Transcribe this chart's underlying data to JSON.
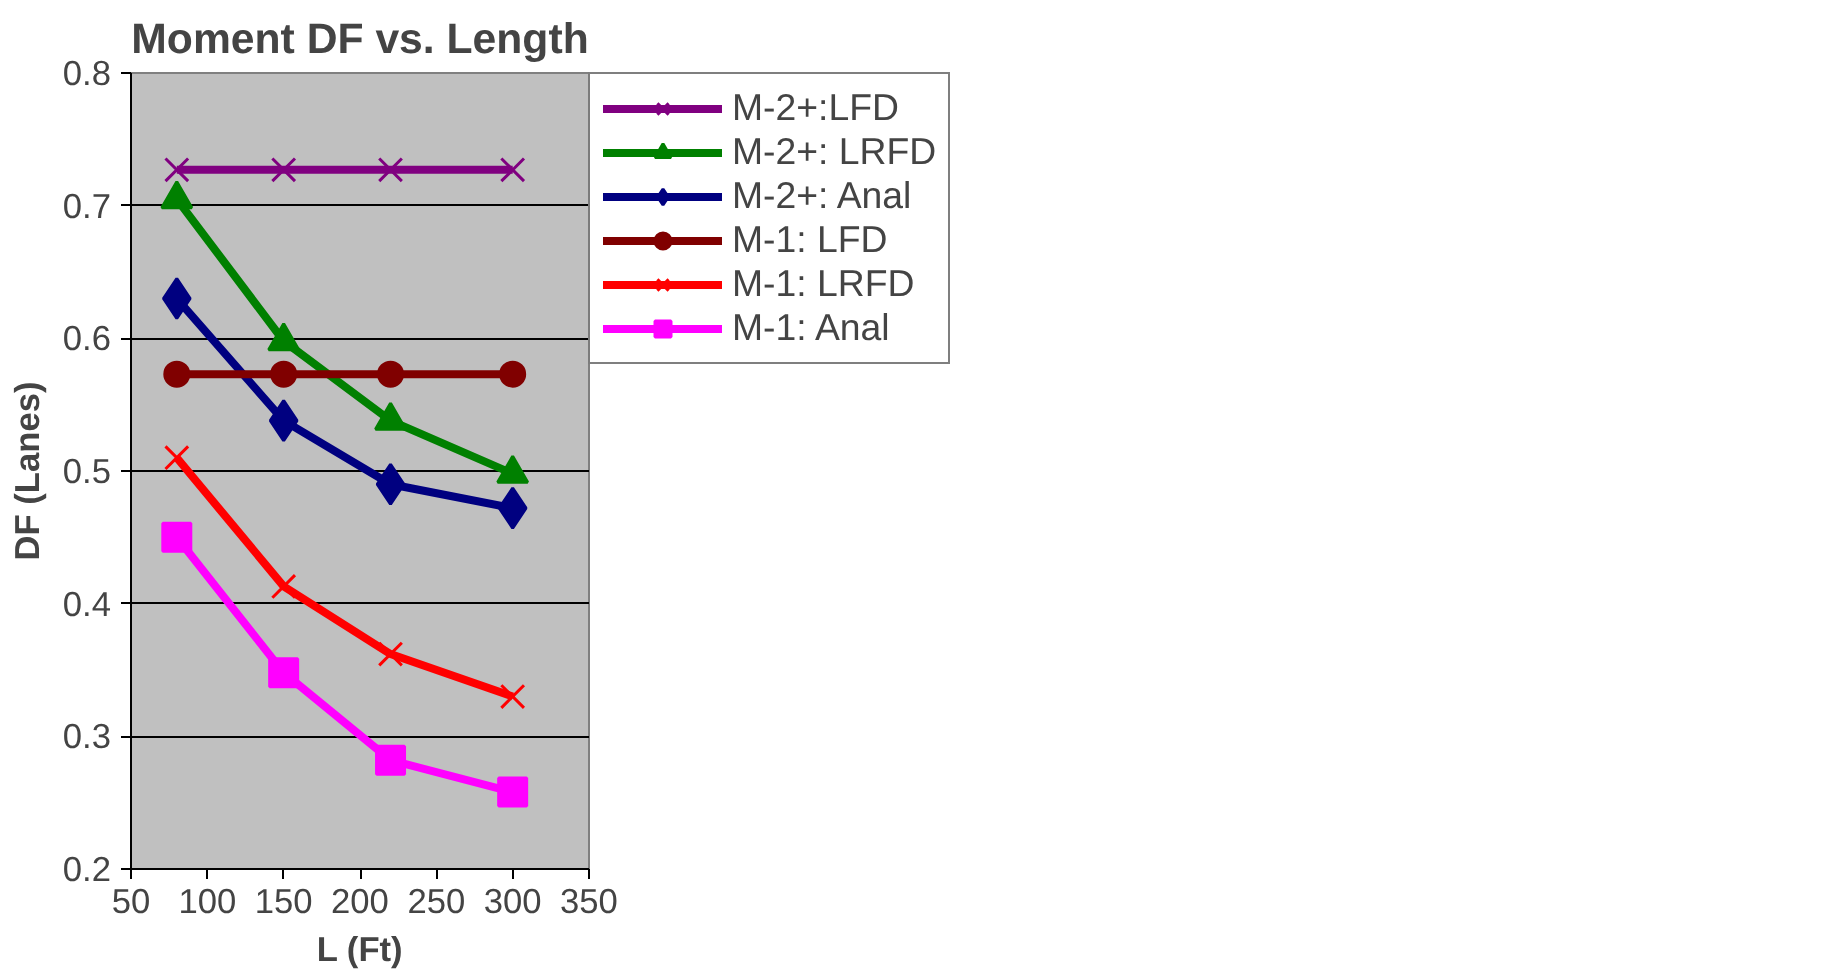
{
  "chart_data": {
    "type": "line",
    "title": "Moment DF vs. Length",
    "xlabel": "L (Ft)",
    "ylabel": "DF (Lanes)",
    "x": [
      80,
      150,
      220,
      300
    ],
    "xlim": [
      50,
      350
    ],
    "xticks": [
      50,
      100,
      150,
      200,
      250,
      300,
      350
    ],
    "ylim": [
      0.2,
      0.8
    ],
    "yticks": [
      0.2,
      0.3,
      0.4,
      0.5,
      0.6,
      0.7,
      0.8
    ],
    "grid": "y",
    "legend": "right",
    "series": [
      {
        "name": "M-2+:LFD",
        "color": "#800080",
        "marker": "cross",
        "values": [
          0.727,
          0.727,
          0.727,
          0.727
        ]
      },
      {
        "name": "M-2+: LRFD",
        "color": "#008000",
        "marker": "triangle",
        "values": [
          0.705,
          0.598,
          0.538,
          0.498
        ]
      },
      {
        "name": "M-2+: Anal",
        "color": "#000080",
        "marker": "diamond",
        "values": [
          0.63,
          0.538,
          0.49,
          0.472
        ]
      },
      {
        "name": "M-1: LFD",
        "color": "#800000",
        "marker": "circle",
        "values": [
          0.573,
          0.573,
          0.573,
          0.573
        ]
      },
      {
        "name": "M-1: LRFD",
        "color": "#ff0000",
        "marker": "cross",
        "values": [
          0.51,
          0.413,
          0.362,
          0.33
        ]
      },
      {
        "name": "M-1: Anal",
        "color": "#ff00ff",
        "marker": "square",
        "values": [
          0.45,
          0.348,
          0.282,
          0.258
        ]
      }
    ]
  }
}
